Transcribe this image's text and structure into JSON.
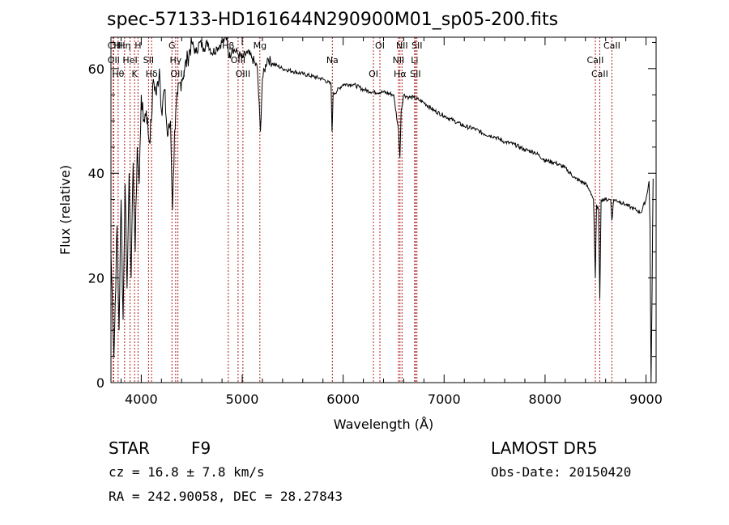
{
  "chart_data": {
    "type": "line",
    "title": "spec-57133-HD161644N290900M01_sp05-200.fits",
    "xlabel": "Wavelength (Å)",
    "ylabel": "Flux (relative)",
    "xlim": [
      3700,
      9100
    ],
    "ylim": [
      0,
      66
    ],
    "x_ticks": [
      4000,
      5000,
      6000,
      7000,
      8000,
      9000
    ],
    "y_ticks": [
      0,
      20,
      40,
      60
    ],
    "grid": false,
    "series": [
      {
        "color": "#000000",
        "points": [
          [
            3700,
            25
          ],
          [
            3730,
            5
          ],
          [
            3760,
            30
          ],
          [
            3780,
            10
          ],
          [
            3800,
            35
          ],
          [
            3820,
            12
          ],
          [
            3840,
            38
          ],
          [
            3860,
            18
          ],
          [
            3880,
            40
          ],
          [
            3900,
            20
          ],
          [
            3920,
            42
          ],
          [
            3940,
            25
          ],
          [
            3960,
            45
          ],
          [
            3980,
            38
          ],
          [
            4000,
            55
          ],
          [
            4020,
            50
          ],
          [
            4050,
            52
          ],
          [
            4080,
            46
          ],
          [
            4100,
            50
          ],
          [
            4120,
            58
          ],
          [
            4150,
            55
          ],
          [
            4180,
            60
          ],
          [
            4200,
            52
          ],
          [
            4230,
            56
          ],
          [
            4260,
            47
          ],
          [
            4290,
            50
          ],
          [
            4310,
            33
          ],
          [
            4330,
            48
          ],
          [
            4360,
            55
          ],
          [
            4400,
            58
          ],
          [
            4430,
            60
          ],
          [
            4460,
            62
          ],
          [
            4500,
            65
          ],
          [
            4540,
            63
          ],
          [
            4580,
            65
          ],
          [
            4620,
            64
          ],
          [
            4660,
            65
          ],
          [
            4700,
            63
          ],
          [
            4750,
            64
          ],
          [
            4800,
            65
          ],
          [
            4850,
            66
          ],
          [
            4870,
            62
          ],
          [
            4900,
            64
          ],
          [
            4950,
            63
          ],
          [
            5000,
            62
          ],
          [
            5050,
            63
          ],
          [
            5100,
            62
          ],
          [
            5150,
            60
          ],
          [
            5180,
            48
          ],
          [
            5200,
            58
          ],
          [
            5250,
            62
          ],
          [
            5300,
            61
          ],
          [
            5350,
            60.5
          ],
          [
            5400,
            60
          ],
          [
            5500,
            59.5
          ],
          [
            5600,
            59
          ],
          [
            5700,
            58.5
          ],
          [
            5800,
            58
          ],
          [
            5880,
            57
          ],
          [
            5890,
            48
          ],
          [
            5900,
            55
          ],
          [
            6000,
            57
          ],
          [
            6100,
            57
          ],
          [
            6200,
            56
          ],
          [
            6300,
            55.5
          ],
          [
            6400,
            55.5
          ],
          [
            6500,
            55
          ],
          [
            6550,
            48
          ],
          [
            6562,
            43
          ],
          [
            6575,
            52
          ],
          [
            6600,
            55
          ],
          [
            6650,
            54.5
          ],
          [
            6700,
            54.5
          ],
          [
            6750,
            54
          ],
          [
            6800,
            53.5
          ],
          [
            6900,
            52
          ],
          [
            7000,
            51
          ],
          [
            7100,
            50
          ],
          [
            7200,
            49
          ],
          [
            7300,
            48.5
          ],
          [
            7400,
            47.5
          ],
          [
            7500,
            47
          ],
          [
            7600,
            46
          ],
          [
            7700,
            45.5
          ],
          [
            7800,
            44.5
          ],
          [
            7900,
            44
          ],
          [
            8000,
            42.5
          ],
          [
            8100,
            42
          ],
          [
            8200,
            41
          ],
          [
            8300,
            39
          ],
          [
            8400,
            38
          ],
          [
            8450,
            36.5
          ],
          [
            8480,
            35
          ],
          [
            8498,
            20
          ],
          [
            8510,
            34
          ],
          [
            8530,
            33
          ],
          [
            8542,
            16
          ],
          [
            8555,
            35
          ],
          [
            8600,
            35
          ],
          [
            8650,
            35
          ],
          [
            8662,
            31
          ],
          [
            8680,
            35
          ],
          [
            8750,
            34.5
          ],
          [
            8800,
            34
          ],
          [
            8850,
            33.5
          ],
          [
            8900,
            33
          ],
          [
            8950,
            32.5
          ],
          [
            9000,
            35
          ],
          [
            9030,
            38.5
          ],
          [
            9040,
            30
          ],
          [
            9050,
            0
          ],
          [
            9060,
            17
          ],
          [
            9070,
            39
          ]
        ]
      }
    ],
    "line_markers": [
      {
        "x": 3722,
        "labels": [
          "CII"
        ]
      },
      {
        "x": 3727,
        "labels": [
          "OII"
        ]
      },
      {
        "x": 3771,
        "labels": [
          "Hθ",
          "HI"
        ]
      },
      {
        "x": 3835,
        "labels": [
          "Hη"
        ]
      },
      {
        "x": 3889,
        "labels": [
          "HeI"
        ]
      },
      {
        "x": 3934,
        "labels": [
          "K"
        ]
      },
      {
        "x": 3968,
        "labels": [
          "H"
        ]
      },
      {
        "x": 4072,
        "labels": [
          "SII"
        ]
      },
      {
        "x": 4102,
        "labels": [
          "Hδ"
        ]
      },
      {
        "x": 4304,
        "labels": [
          "G"
        ]
      },
      {
        "x": 4341,
        "labels": [
          "Hγ"
        ]
      },
      {
        "x": 4363,
        "labels": [
          "OIII"
        ]
      },
      {
        "x": 4862,
        "labels": [
          "Hβ"
        ]
      },
      {
        "x": 4959,
        "labels": [
          "OIII"
        ]
      },
      {
        "x": 5007,
        "labels": [
          "OIII"
        ]
      },
      {
        "x": 5175,
        "labels": [
          "Mg"
        ]
      },
      {
        "x": 5893,
        "labels": [
          "Na"
        ]
      },
      {
        "x": 6300,
        "labels": [
          "OI"
        ]
      },
      {
        "x": 6364,
        "labels": [
          "OI"
        ]
      },
      {
        "x": 6548,
        "labels": [
          "NII"
        ]
      },
      {
        "x": 6563,
        "labels": [
          "Hα"
        ]
      },
      {
        "x": 6583,
        "labels": [
          "NII"
        ]
      },
      {
        "x": 6708,
        "labels": [
          "Li"
        ]
      },
      {
        "x": 6716,
        "labels": [
          "SII"
        ]
      },
      {
        "x": 6731,
        "labels": [
          "SII"
        ]
      },
      {
        "x": 8498,
        "labels": [
          "CaII"
        ]
      },
      {
        "x": 8542,
        "labels": [
          "CaII"
        ]
      },
      {
        "x": 8662,
        "labels": [
          "CaII"
        ]
      }
    ],
    "marker_color": "#b01c1c"
  },
  "footer": {
    "object_class": "STAR",
    "subclass": "F9",
    "survey": "LAMOST DR5",
    "cz": "cz = 16.8 ± 7.8 km/s",
    "obs_date": "Obs-Date: 20150420",
    "coords": "RA = 242.90058, DEC =  28.27843"
  }
}
